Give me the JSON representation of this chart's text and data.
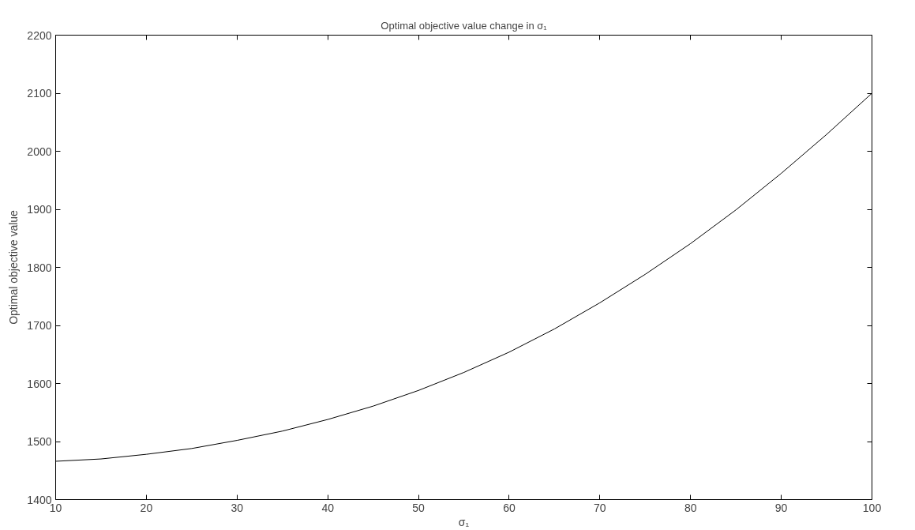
{
  "chart_data": {
    "type": "line",
    "title": "Optimal objective value change in σ₁",
    "xlabel": "σ₁",
    "ylabel": "Optimal objective value",
    "x": [
      10,
      15,
      20,
      25,
      30,
      35,
      40,
      45,
      50,
      55,
      60,
      65,
      70,
      75,
      80,
      85,
      90,
      95,
      100
    ],
    "series": [
      {
        "color": "#000000",
        "values": [
          1466,
          1470,
          1478,
          1488,
          1502,
          1518,
          1538,
          1561,
          1588,
          1619,
          1654,
          1694,
          1739,
          1788,
          1841,
          1899,
          1962,
          2029,
          2100
        ]
      }
    ],
    "xlim": [
      10,
      100
    ],
    "ylim": [
      1400,
      2200
    ],
    "xticks": [
      10,
      20,
      30,
      40,
      50,
      60,
      70,
      80,
      90,
      100
    ],
    "yticks": [
      1400,
      1500,
      1600,
      1700,
      1800,
      1900,
      2000,
      2100,
      2200
    ],
    "grid": false,
    "marker": "none",
    "line_style": "solid"
  }
}
